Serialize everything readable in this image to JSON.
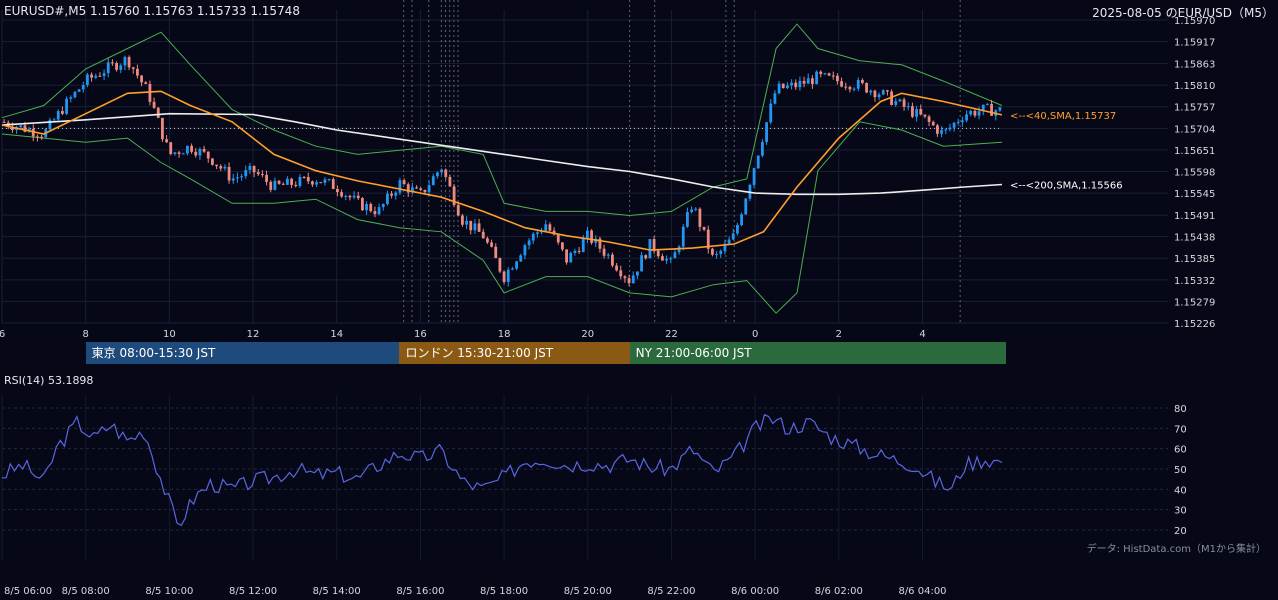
{
  "header": {
    "symbol_ohlc": "EURUSD#,M5 1.15760 1.15763 1.15733 1.15748",
    "title_right": "2025-08-05 のEUR/USD（M5）"
  },
  "sessions": [
    {
      "label": "東京 08:00-15:30 JST",
      "start_hour": 8,
      "end_hour": 15.5,
      "color": "#1f4a7c"
    },
    {
      "label": "ロンドン 15:30-21:00 JST",
      "start_hour": 15.5,
      "end_hour": 21,
      "color": "#8a5a14"
    },
    {
      "label": "NY 21:00-06:00 JST",
      "start_hour": 21,
      "end_hour": 30,
      "color": "#2a6a3c"
    }
  ],
  "rsi_label": "RSI(14) 53.1898",
  "source_note": "データ: HistData.com（M1から集計）",
  "chart_data": [
    {
      "type": "candlestick",
      "x_axis": {
        "range_hours": [
          6,
          29.9
        ],
        "tick_labels": [
          "6",
          "8",
          "10",
          "12",
          "14",
          "16",
          "18",
          "20",
          "22",
          "0",
          "2",
          "4"
        ]
      },
      "y_axis": {
        "range": [
          1.15226,
          1.1597
        ],
        "tick_labels": [
          "1.15970",
          "1.15917",
          "1.15863",
          "1.15810",
          "1.15757",
          "1.15704",
          "1.15651",
          "1.15598",
          "1.15545",
          "1.15491",
          "1.15438",
          "1.15385",
          "1.15332",
          "1.15279",
          "1.15226"
        ]
      },
      "colors": {
        "up": "#2196f3",
        "down": "#ef8a80",
        "sma40": "#ff9f2a",
        "sma200": "#eeeeee",
        "bollinger": "#4caf50"
      },
      "close_path": [
        [
          6,
          1.1572
        ],
        [
          6.5,
          1.15705
        ],
        [
          7,
          1.1569
        ],
        [
          7.5,
          1.1576
        ],
        [
          8,
          1.1582
        ],
        [
          8.5,
          1.1585
        ],
        [
          9,
          1.15875
        ],
        [
          9.5,
          1.1579
        ],
        [
          10,
          1.1564
        ],
        [
          10.5,
          1.1566
        ],
        [
          11,
          1.1563
        ],
        [
          11.5,
          1.1558
        ],
        [
          12,
          1.156
        ],
        [
          12.5,
          1.1556
        ],
        [
          13,
          1.1557
        ],
        [
          13.5,
          1.1558
        ],
        [
          14,
          1.1556
        ],
        [
          14.5,
          1.1552
        ],
        [
          15,
          1.155
        ],
        [
          15.5,
          1.1557
        ],
        [
          16,
          1.1554
        ],
        [
          16.5,
          1.1561
        ],
        [
          17,
          1.1548
        ],
        [
          17.5,
          1.1544
        ],
        [
          18,
          1.1534
        ],
        [
          18.5,
          1.1542
        ],
        [
          19,
          1.1547
        ],
        [
          19.5,
          1.1538
        ],
        [
          20,
          1.1544
        ],
        [
          20.5,
          1.1539
        ],
        [
          21,
          1.1533
        ],
        [
          21.5,
          1.1542
        ],
        [
          22,
          1.1537
        ],
        [
          22.5,
          1.1552
        ],
        [
          23,
          1.1538
        ],
        [
          23.5,
          1.1544
        ],
        [
          24,
          1.1562
        ],
        [
          24.5,
          1.158
        ],
        [
          25,
          1.1581
        ],
        [
          25.5,
          1.1583
        ],
        [
          26,
          1.1582
        ],
        [
          26.5,
          1.1581
        ],
        [
          27,
          1.1579
        ],
        [
          27.5,
          1.1576
        ],
        [
          28,
          1.1573
        ],
        [
          28.5,
          1.1569
        ],
        [
          29,
          1.1574
        ],
        [
          29.5,
          1.1575
        ],
        [
          29.9,
          1.15748
        ]
      ],
      "sma40_path": [
        [
          6,
          1.15712
        ],
        [
          7,
          1.1569
        ],
        [
          8,
          1.1574
        ],
        [
          9,
          1.1579
        ],
        [
          9.8,
          1.15795
        ],
        [
          10.5,
          1.1576
        ],
        [
          11.5,
          1.1572
        ],
        [
          12.5,
          1.1564
        ],
        [
          13.5,
          1.156
        ],
        [
          14.5,
          1.15575
        ],
        [
          15.5,
          1.15555
        ],
        [
          16.5,
          1.15535
        ],
        [
          17.5,
          1.155
        ],
        [
          18.5,
          1.1546
        ],
        [
          19.5,
          1.1544
        ],
        [
          20.5,
          1.15425
        ],
        [
          21.5,
          1.15405
        ],
        [
          22.5,
          1.1541
        ],
        [
          23.5,
          1.1542
        ],
        [
          24.2,
          1.1545
        ],
        [
          25,
          1.1556
        ],
        [
          26,
          1.1568
        ],
        [
          27,
          1.1577
        ],
        [
          27.5,
          1.1579
        ],
        [
          28.5,
          1.1577
        ],
        [
          29.9,
          1.15737
        ]
      ],
      "sma200_path": [
        [
          6,
          1.15712
        ],
        [
          8,
          1.15725
        ],
        [
          10,
          1.1574
        ],
        [
          12,
          1.15738
        ],
        [
          13,
          1.1572
        ],
        [
          14,
          1.157
        ],
        [
          15,
          1.15685
        ],
        [
          16,
          1.1567
        ],
        [
          17,
          1.15655
        ],
        [
          18,
          1.1564
        ],
        [
          19,
          1.15625
        ],
        [
          20,
          1.1561
        ],
        [
          21,
          1.15598
        ],
        [
          22,
          1.1558
        ],
        [
          23,
          1.1556
        ],
        [
          24,
          1.15545
        ],
        [
          25,
          1.15542
        ],
        [
          26,
          1.15542
        ],
        [
          27,
          1.15545
        ],
        [
          28,
          1.15552
        ],
        [
          29,
          1.1556
        ],
        [
          29.9,
          1.15566
        ]
      ],
      "bollinger_upper": [
        [
          6,
          1.1573
        ],
        [
          7,
          1.1576
        ],
        [
          8,
          1.1585
        ],
        [
          9,
          1.159
        ],
        [
          9.8,
          1.1594
        ],
        [
          10.5,
          1.1586
        ],
        [
          11.5,
          1.1575
        ],
        [
          12.5,
          1.157
        ],
        [
          13.5,
          1.1566
        ],
        [
          14.5,
          1.1564
        ],
        [
          15.5,
          1.1565
        ],
        [
          16.5,
          1.1566
        ],
        [
          17.5,
          1.1564
        ],
        [
          18,
          1.1552
        ],
        [
          19,
          1.155
        ],
        [
          20,
          1.155
        ],
        [
          21,
          1.1549
        ],
        [
          22,
          1.155
        ],
        [
          23,
          1.1556
        ],
        [
          23.8,
          1.1558
        ],
        [
          24.5,
          1.159
        ],
        [
          25,
          1.1596
        ],
        [
          25.5,
          1.159
        ],
        [
          26.5,
          1.1587
        ],
        [
          27.5,
          1.1586
        ],
        [
          28.5,
          1.1582
        ],
        [
          29.9,
          1.1576
        ]
      ],
      "bollinger_lower": [
        [
          6,
          1.1569
        ],
        [
          7,
          1.1568
        ],
        [
          8,
          1.1567
        ],
        [
          9,
          1.1568
        ],
        [
          9.8,
          1.1562
        ],
        [
          10.5,
          1.1558
        ],
        [
          11.5,
          1.1552
        ],
        [
          12.5,
          1.1552
        ],
        [
          13.5,
          1.1553
        ],
        [
          14.5,
          1.1548
        ],
        [
          15.5,
          1.1546
        ],
        [
          16.5,
          1.1545
        ],
        [
          17.5,
          1.1538
        ],
        [
          18,
          1.153
        ],
        [
          19,
          1.1534
        ],
        [
          20,
          1.1534
        ],
        [
          21,
          1.153
        ],
        [
          22,
          1.1529
        ],
        [
          23,
          1.1532
        ],
        [
          23.8,
          1.1533
        ],
        [
          24.5,
          1.1525
        ],
        [
          25,
          1.153
        ],
        [
          25.5,
          1.156
        ],
        [
          26.5,
          1.1572
        ],
        [
          27.5,
          1.157
        ],
        [
          28.5,
          1.1566
        ],
        [
          29.9,
          1.1567
        ]
      ],
      "current_price_line": 1.15704,
      "annotations": [
        {
          "label": "<--<40,SMA,1.15737",
          "y": 1.15737,
          "color": "#ff9f2a"
        },
        {
          "label": "<--<200,SMA,1.15566",
          "y": 1.15566,
          "color": "#ffffff"
        }
      ],
      "session_dotted_lines": [
        15.6,
        15.8,
        16.2,
        16.5,
        16.6,
        16.7,
        16.8,
        16.9,
        21,
        21.6,
        23.3,
        23.5,
        28.9
      ]
    },
    {
      "type": "line",
      "name": "RSI(14)",
      "y_axis": {
        "range": [
          15,
          85
        ],
        "tick_labels": [
          "80",
          "70",
          "60",
          "50",
          "40",
          "30",
          "20"
        ]
      },
      "x_tick_labels": [
        "8/5 06:00",
        "8/5 08:00",
        "8/5 10:00",
        "8/5 12:00",
        "8/5 14:00",
        "8/5 16:00",
        "8/5 18:00",
        "8/5 20:00",
        "8/5 22:00",
        "8/6 00:00",
        "8/6 02:00",
        "8/6 04:00"
      ],
      "color": "#5a66e0",
      "values_path": [
        [
          6,
          47
        ],
        [
          6.5,
          52
        ],
        [
          7,
          44
        ],
        [
          7.3,
          60
        ],
        [
          7.8,
          73
        ],
        [
          8.2,
          65
        ],
        [
          8.6,
          72
        ],
        [
          9,
          64
        ],
        [
          9.4,
          69
        ],
        [
          9.8,
          45
        ],
        [
          10.2,
          22
        ],
        [
          10.6,
          36
        ],
        [
          11,
          43
        ],
        [
          11.5,
          40
        ],
        [
          12,
          44
        ],
        [
          12.5,
          46
        ],
        [
          13,
          50
        ],
        [
          13.5,
          47
        ],
        [
          14,
          48
        ],
        [
          14.5,
          45
        ],
        [
          15,
          52
        ],
        [
          15.5,
          58
        ],
        [
          16,
          55
        ],
        [
          16.5,
          59
        ],
        [
          17,
          44
        ],
        [
          17.5,
          40
        ],
        [
          18,
          46
        ],
        [
          18.5,
          54
        ],
        [
          19,
          55
        ],
        [
          19.5,
          52
        ],
        [
          20,
          53
        ],
        [
          20.5,
          52
        ],
        [
          21,
          55
        ],
        [
          21.5,
          51
        ],
        [
          22,
          50
        ],
        [
          22.5,
          60
        ],
        [
          23,
          48
        ],
        [
          23.5,
          56
        ],
        [
          24,
          70
        ],
        [
          24.4,
          75
        ],
        [
          24.8,
          70
        ],
        [
          25.3,
          73
        ],
        [
          25.8,
          66
        ],
        [
          26.3,
          62
        ],
        [
          26.8,
          58
        ],
        [
          27.3,
          55
        ],
        [
          27.8,
          52
        ],
        [
          28.3,
          44
        ],
        [
          28.7,
          40
        ],
        [
          29,
          52
        ],
        [
          29.5,
          55
        ],
        [
          29.9,
          53.2
        ]
      ]
    }
  ]
}
